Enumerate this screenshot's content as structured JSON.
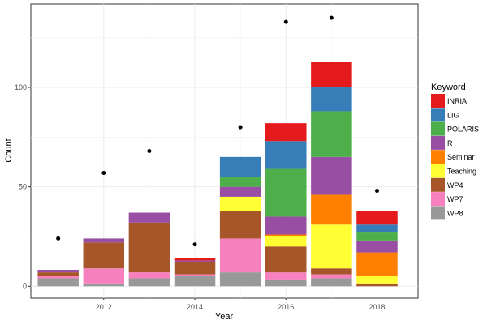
{
  "chart_data": {
    "type": "bar",
    "stacked": true,
    "xlabel": "Year",
    "ylabel": "Count",
    "x": [
      2011,
      2012,
      2013,
      2014,
      2015,
      2016,
      2017,
      2018
    ],
    "xticks": [
      "2012",
      "2014",
      "2016",
      "2018"
    ],
    "yticks": [
      "0",
      "50",
      "100"
    ],
    "ylim": [
      -6,
      142
    ],
    "xlim": [
      2010.4,
      2018.9
    ],
    "grid": true,
    "legend": {
      "title": "Keyword",
      "placement": "right"
    },
    "series": [
      {
        "name": "WP8",
        "color": "#999999",
        "values": [
          4,
          1,
          4,
          5,
          7,
          3,
          4,
          0
        ]
      },
      {
        "name": "WP7",
        "color": "#F781BF",
        "values": [
          1,
          8,
          3,
          1,
          17,
          4,
          2,
          0
        ]
      },
      {
        "name": "WP4",
        "color": "#A65628",
        "values": [
          2,
          13,
          25,
          6,
          14,
          13,
          3,
          1
        ]
      },
      {
        "name": "Teaching",
        "color": "#FFFF33",
        "values": [
          0,
          0,
          0,
          0,
          7,
          5,
          22,
          4
        ]
      },
      {
        "name": "Seminar",
        "color": "#FF7F00",
        "values": [
          0,
          0,
          0,
          0,
          0,
          1,
          15,
          12
        ]
      },
      {
        "name": "R",
        "color": "#984EA3",
        "values": [
          1,
          2,
          5,
          1,
          5,
          9,
          19,
          6
        ]
      },
      {
        "name": "POLARIS",
        "color": "#4DAF4A",
        "values": [
          0,
          0,
          0,
          0,
          5,
          24,
          23,
          4
        ]
      },
      {
        "name": "LIG",
        "color": "#377EB8",
        "values": [
          0,
          0,
          0,
          0,
          10,
          14,
          12,
          4
        ]
      },
      {
        "name": "INRIA",
        "color": "#E41A1C",
        "values": [
          0,
          0,
          0,
          1,
          0,
          9,
          13,
          7
        ]
      }
    ],
    "points": {
      "color": "#000000",
      "values": [
        24,
        57,
        68,
        21,
        80,
        133,
        135,
        48
      ]
    },
    "legend_order": [
      "INRIA",
      "LIG",
      "POLARIS",
      "R",
      "Seminar",
      "Teaching",
      "WP4",
      "WP7",
      "WP8"
    ]
  }
}
